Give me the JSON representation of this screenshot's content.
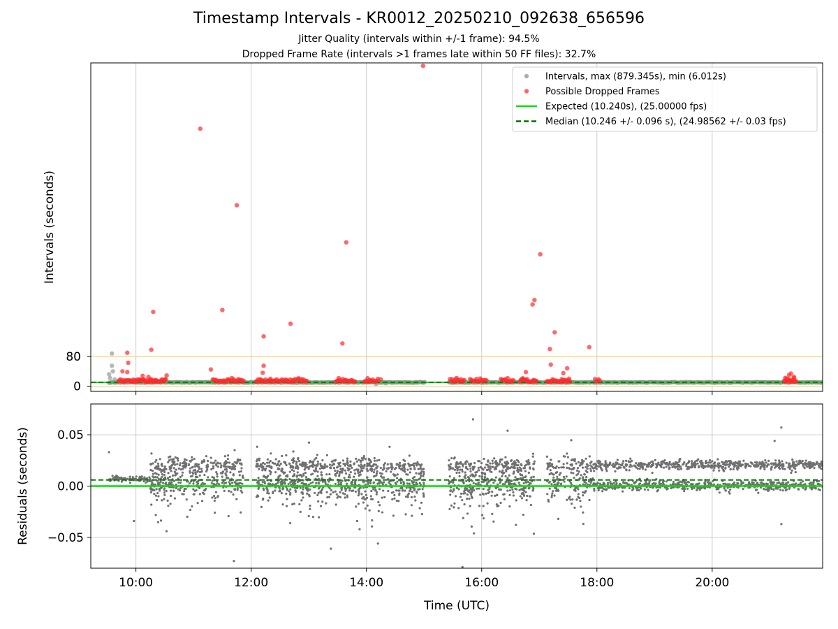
{
  "title": "Timestamp Intervals - KR0012_20250210_092638_656596",
  "subtitle_1": "Jitter Quality (intervals within +/-1 frame): 94.5%",
  "subtitle_2": "Dropped Frame Rate (intervals >1 frames late within 50 FF files): 32.7%",
  "colors": {
    "normal": "#808080",
    "dropped": "#ff2020",
    "expected": "#00e000",
    "median": "#008000",
    "threshold": "#ffd060",
    "grid": "#cccccc"
  },
  "chart_data": [
    {
      "type": "scatter",
      "panel": "top",
      "ylabel": "Intervals (seconds)",
      "xlim": [
        "09:13",
        "21:55"
      ],
      "ylim": [
        -14,
        870
      ],
      "yticks": [
        {
          "value": 0,
          "label": "0"
        },
        {
          "value": 80,
          "label": "80"
        }
      ],
      "xgrid": [
        600,
        720,
        840,
        960,
        1080,
        1200
      ],
      "threshold_line": 80,
      "legend": {
        "position": "top-right",
        "items": [
          {
            "label": "Intervals, max (879.345s), min (6.012s)",
            "kind": "dot",
            "color": "#999999"
          },
          {
            "label": "Possible Dropped Frames",
            "kind": "dot",
            "color": "#ff4040"
          },
          {
            "label": "Expected (10.240s), (25.00000 fps)",
            "kind": "line",
            "color": "#00e000"
          },
          {
            "label": "Median (10.246 +/- 0.096 s), (24.98562 +/- 0.03 fps)",
            "kind": "dash",
            "color": "#007000"
          }
        ]
      },
      "series": [
        {
          "name": "Intervals, max (879.345s), min (6.012s)",
          "band": {
            "x_start": "09:32",
            "x_end": "21:55",
            "center": 10.24
          },
          "points": [
            {
              "x": "09:35",
              "y": 88
            },
            {
              "x": "09:35",
              "y": 55
            },
            {
              "x": "09:36",
              "y": 40
            },
            {
              "x": "09:32",
              "y": 32
            },
            {
              "x": "09:33",
              "y": 22
            },
            {
              "x": "09:38",
              "y": 18
            },
            {
              "x": "14:10",
              "y": 6
            },
            {
              "x": "14:20",
              "y": 8
            }
          ]
        },
        {
          "name": "Possible Dropped Frames",
          "clusters": [
            {
              "from": "09:42",
              "to": "10:32",
              "n": 60
            },
            {
              "from": "11:20",
              "to": "11:52",
              "n": 30
            },
            {
              "from": "12:05",
              "to": "12:58",
              "n": 50
            },
            {
              "from": "13:28",
              "to": "13:48",
              "n": 20
            },
            {
              "from": "13:58",
              "to": "14:12",
              "n": 14
            },
            {
              "from": "15:27",
              "to": "15:42",
              "n": 14
            },
            {
              "from": "15:48",
              "to": "16:05",
              "n": 14
            },
            {
              "from": "16:20",
              "to": "16:33",
              "n": 12
            },
            {
              "from": "16:40",
              "to": "16:57",
              "n": 20
            },
            {
              "from": "17:08",
              "to": "17:32",
              "n": 26
            },
            {
              "from": "17:58",
              "to": "18:03",
              "n": 5
            },
            {
              "from": "21:15",
              "to": "21:27",
              "n": 16
            }
          ],
          "points": [
            {
              "x": "14:59",
              "y": 862
            },
            {
              "x": "11:07",
              "y": 693
            },
            {
              "x": "11:45",
              "y": 487
            },
            {
              "x": "13:39",
              "y": 387
            },
            {
              "x": "17:01",
              "y": 355
            },
            {
              "x": "16:53",
              "y": 220
            },
            {
              "x": "16:55",
              "y": 232
            },
            {
              "x": "10:18",
              "y": 200
            },
            {
              "x": "11:30",
              "y": 205
            },
            {
              "x": "12:41",
              "y": 168
            },
            {
              "x": "12:13",
              "y": 134
            },
            {
              "x": "13:35",
              "y": 115
            },
            {
              "x": "17:16",
              "y": 145
            },
            {
              "x": "17:11",
              "y": 100
            },
            {
              "x": "17:52",
              "y": 105
            },
            {
              "x": "10:16",
              "y": 98
            },
            {
              "x": "09:51",
              "y": 90
            },
            {
              "x": "09:52",
              "y": 63
            },
            {
              "x": "12:13",
              "y": 55
            },
            {
              "x": "11:18",
              "y": 45
            },
            {
              "x": "12:12",
              "y": 36
            },
            {
              "x": "17:12",
              "y": 58
            },
            {
              "x": "17:29",
              "y": 48
            },
            {
              "x": "17:25",
              "y": 35
            },
            {
              "x": "16:46",
              "y": 38
            },
            {
              "x": "09:46",
              "y": 40
            },
            {
              "x": "09:51",
              "y": 38
            },
            {
              "x": "10:07",
              "y": 28
            },
            {
              "x": "10:13",
              "y": 25
            },
            {
              "x": "12:20",
              "y": 20
            },
            {
              "x": "14:15",
              "y": 18
            },
            {
              "x": "21:20",
              "y": 30
            },
            {
              "x": "21:22",
              "y": 34
            },
            {
              "x": "21:16",
              "y": 22
            },
            {
              "x": "21:25",
              "y": 25
            }
          ]
        },
        {
          "name": "Expected (10.240s), (25.00000 fps)",
          "y": 10.24
        },
        {
          "name": "Median (10.246 +/- 0.096 s), (24.98562 +/- 0.03 fps)",
          "y": 10.246
        }
      ]
    },
    {
      "type": "scatter",
      "panel": "bottom",
      "xlabel": "Time (UTC)",
      "ylabel": "Residuals (seconds)",
      "xlim": [
        "09:13",
        "21:55"
      ],
      "ylim": [
        -0.08,
        0.08
      ],
      "xticks": [
        {
          "value": "10:00",
          "label": "10:00"
        },
        {
          "value": "12:00",
          "label": "12:00"
        },
        {
          "value": "14:00",
          "label": "14:00"
        },
        {
          "value": "16:00",
          "label": "16:00"
        },
        {
          "value": "18:00",
          "label": "18:00"
        },
        {
          "value": "20:00",
          "label": "20:00"
        }
      ],
      "yticks": [
        {
          "value": 0.05,
          "label": "0.05"
        },
        {
          "value": 0.0,
          "label": "0.00"
        },
        {
          "value": -0.05,
          "label": "−0.05"
        }
      ],
      "series": [
        {
          "name": "Residuals",
          "segments": [
            {
              "from": "09:32",
              "to": "10:15",
              "mode": "tight",
              "n": 90
            },
            {
              "from": "10:15",
              "to": "11:15",
              "mode": "scatter",
              "n": 320
            },
            {
              "from": "11:18",
              "to": "11:52",
              "mode": "scatter",
              "n": 150
            },
            {
              "from": "12:05",
              "to": "15:00",
              "mode": "scatter",
              "n": 900
            },
            {
              "from": "15:25",
              "to": "16:55",
              "mode": "scatter",
              "n": 480
            },
            {
              "from": "17:08",
              "to": "17:58",
              "mode": "scatter",
              "n": 220
            },
            {
              "from": "17:58",
              "to": "21:55",
              "mode": "bimodal",
              "n": 1100
            }
          ],
          "outliers": [
            {
              "x": "09:32",
              "y": 0.033
            },
            {
              "x": "09:58",
              "y": -0.034
            },
            {
              "x": "11:42",
              "y": -0.073
            },
            {
              "x": "13:23",
              "y": -0.061
            },
            {
              "x": "14:12",
              "y": -0.056
            },
            {
              "x": "15:51",
              "y": 0.065
            },
            {
              "x": "15:52",
              "y": -0.046
            },
            {
              "x": "15:40",
              "y": -0.079
            },
            {
              "x": "16:27",
              "y": 0.054
            },
            {
              "x": "21:12",
              "y": 0.057
            },
            {
              "x": "21:12",
              "y": -0.037
            },
            {
              "x": "21:05",
              "y": 0.044
            }
          ]
        },
        {
          "name": "Expected",
          "y": 0.0
        },
        {
          "name": "Median",
          "y": 0.006
        }
      ]
    }
  ]
}
